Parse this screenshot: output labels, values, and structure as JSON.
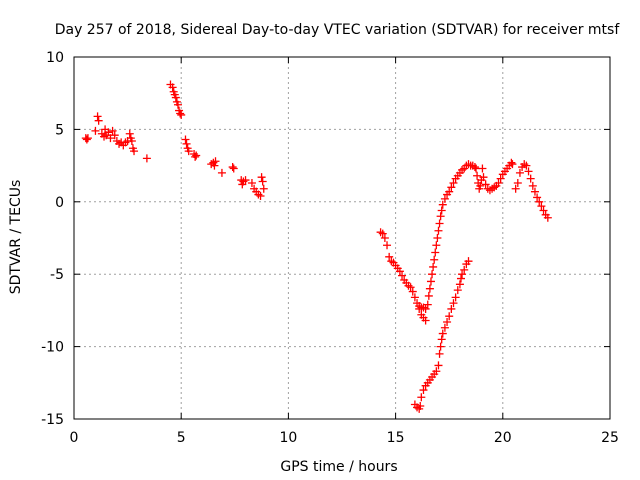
{
  "chart_data": {
    "type": "scatter",
    "title": "Day 257 of 2018, Sidereal Day-to-day VTEC variation (SDTVAR) for receiver mtsf",
    "xlabel": "GPS time / hours",
    "ylabel": "SDTVAR / TECUs",
    "xlim": [
      0,
      25
    ],
    "ylim": [
      -15,
      10
    ],
    "xticks": [
      0,
      5,
      10,
      15,
      20,
      25
    ],
    "yticks": [
      -15,
      -10,
      -5,
      0,
      5,
      10
    ],
    "grid": true,
    "marker": "+",
    "color": "#ff0000",
    "series": [
      {
        "name": "SDTVAR",
        "points": [
          [
            0.55,
            4.4
          ],
          [
            0.6,
            4.3
          ],
          [
            0.65,
            4.4
          ],
          [
            1.0,
            4.9
          ],
          [
            1.1,
            5.9
          ],
          [
            1.15,
            5.6
          ],
          [
            1.3,
            4.7
          ],
          [
            1.4,
            4.5
          ],
          [
            1.45,
            5.0
          ],
          [
            1.5,
            4.6
          ],
          [
            1.6,
            4.8
          ],
          [
            1.7,
            4.4
          ],
          [
            1.8,
            4.9
          ],
          [
            1.9,
            4.6
          ],
          [
            2.0,
            4.2
          ],
          [
            2.1,
            4.0
          ],
          [
            2.2,
            4.1
          ],
          [
            2.3,
            3.9
          ],
          [
            2.4,
            4.1
          ],
          [
            2.5,
            4.2
          ],
          [
            2.6,
            4.7
          ],
          [
            2.65,
            4.4
          ],
          [
            2.7,
            4.2
          ],
          [
            2.75,
            3.7
          ],
          [
            2.8,
            3.5
          ],
          [
            3.4,
            3.0
          ],
          [
            4.5,
            8.1
          ],
          [
            4.6,
            7.9
          ],
          [
            4.65,
            7.6
          ],
          [
            4.7,
            7.4
          ],
          [
            4.75,
            7.2
          ],
          [
            4.8,
            6.9
          ],
          [
            4.85,
            6.7
          ],
          [
            4.9,
            6.3
          ],
          [
            4.95,
            6.1
          ],
          [
            5.0,
            6.0
          ],
          [
            5.2,
            4.3
          ],
          [
            5.25,
            4.0
          ],
          [
            5.3,
            3.7
          ],
          [
            5.35,
            3.5
          ],
          [
            5.6,
            3.3
          ],
          [
            5.65,
            3.1
          ],
          [
            5.7,
            3.2
          ],
          [
            6.4,
            2.6
          ],
          [
            6.5,
            2.7
          ],
          [
            6.55,
            2.5
          ],
          [
            6.6,
            2.8
          ],
          [
            6.9,
            2.0
          ],
          [
            7.4,
            2.4
          ],
          [
            7.45,
            2.3
          ],
          [
            7.8,
            1.5
          ],
          [
            7.85,
            1.2
          ],
          [
            7.9,
            1.4
          ],
          [
            8.0,
            1.5
          ],
          [
            8.3,
            1.3
          ],
          [
            8.4,
            0.9
          ],
          [
            8.5,
            0.7
          ],
          [
            8.6,
            0.5
          ],
          [
            8.7,
            0.4
          ],
          [
            8.75,
            1.7
          ],
          [
            8.8,
            1.4
          ],
          [
            8.85,
            0.9
          ],
          [
            14.3,
            -2.1
          ],
          [
            14.4,
            -2.2
          ],
          [
            14.5,
            -2.5
          ],
          [
            14.6,
            -3.0
          ],
          [
            14.7,
            -3.8
          ],
          [
            14.8,
            -4.1
          ],
          [
            14.9,
            -4.2
          ],
          [
            15.0,
            -4.4
          ],
          [
            15.1,
            -4.6
          ],
          [
            15.2,
            -4.8
          ],
          [
            15.3,
            -5.1
          ],
          [
            15.4,
            -5.4
          ],
          [
            15.5,
            -5.6
          ],
          [
            15.6,
            -5.8
          ],
          [
            15.7,
            -5.9
          ],
          [
            15.8,
            -6.2
          ],
          [
            15.9,
            -6.6
          ],
          [
            16.0,
            -7.0
          ],
          [
            16.1,
            -7.4
          ],
          [
            16.2,
            -7.8
          ],
          [
            16.3,
            -8.0
          ],
          [
            16.4,
            -8.2
          ],
          [
            16.1,
            -7.2
          ],
          [
            16.2,
            -7.3
          ],
          [
            16.3,
            -7.3
          ],
          [
            16.4,
            -7.4
          ],
          [
            16.5,
            -7.1
          ],
          [
            16.55,
            -6.5
          ],
          [
            16.6,
            -6.0
          ],
          [
            16.65,
            -5.5
          ],
          [
            16.7,
            -5.0
          ],
          [
            16.75,
            -4.5
          ],
          [
            16.8,
            -4.0
          ],
          [
            16.85,
            -3.5
          ],
          [
            16.9,
            -3.0
          ],
          [
            16.95,
            -2.5
          ],
          [
            17.0,
            -2.0
          ],
          [
            17.05,
            -1.5
          ],
          [
            17.1,
            -1.0
          ],
          [
            17.15,
            -0.6
          ],
          [
            17.2,
            -0.2
          ],
          [
            17.3,
            0.2
          ],
          [
            17.4,
            0.5
          ],
          [
            17.5,
            0.7
          ],
          [
            17.6,
            1.0
          ],
          [
            17.7,
            1.3
          ],
          [
            17.8,
            1.6
          ],
          [
            17.9,
            1.8
          ],
          [
            18.0,
            2.0
          ],
          [
            18.1,
            2.2
          ],
          [
            18.2,
            2.3
          ],
          [
            18.3,
            2.5
          ],
          [
            18.4,
            2.6
          ],
          [
            18.5,
            2.5
          ],
          [
            18.6,
            2.5
          ],
          [
            18.7,
            2.4
          ],
          [
            18.75,
            2.3
          ],
          [
            18.8,
            1.8
          ],
          [
            18.85,
            1.3
          ],
          [
            18.9,
            0.9
          ],
          [
            18.95,
            1.1
          ],
          [
            19.0,
            1.5
          ],
          [
            19.05,
            2.3
          ],
          [
            19.1,
            1.7
          ],
          [
            19.2,
            1.2
          ],
          [
            19.3,
            0.9
          ],
          [
            19.4,
            0.8
          ],
          [
            19.5,
            0.9
          ],
          [
            19.6,
            1.0
          ],
          [
            19.7,
            1.1
          ],
          [
            19.8,
            1.3
          ],
          [
            19.9,
            1.6
          ],
          [
            20.0,
            1.9
          ],
          [
            20.1,
            2.1
          ],
          [
            20.2,
            2.3
          ],
          [
            20.3,
            2.5
          ],
          [
            20.4,
            2.7
          ],
          [
            20.45,
            2.6
          ],
          [
            20.6,
            0.9
          ],
          [
            20.7,
            1.3
          ],
          [
            20.8,
            2.0
          ],
          [
            20.9,
            2.4
          ],
          [
            21.0,
            2.6
          ],
          [
            21.1,
            2.5
          ],
          [
            21.2,
            2.1
          ],
          [
            21.3,
            1.6
          ],
          [
            21.4,
            1.1
          ],
          [
            21.5,
            0.7
          ],
          [
            21.6,
            0.3
          ],
          [
            21.7,
            0.0
          ],
          [
            21.8,
            -0.3
          ],
          [
            21.9,
            -0.6
          ],
          [
            22.0,
            -0.9
          ],
          [
            22.1,
            -1.1
          ],
          [
            15.9,
            -14.0
          ],
          [
            16.0,
            -14.2
          ],
          [
            16.1,
            -14.3
          ],
          [
            16.15,
            -14.1
          ],
          [
            16.2,
            -13.5
          ],
          [
            16.3,
            -13.0
          ],
          [
            16.4,
            -12.7
          ],
          [
            16.5,
            -12.5
          ],
          [
            16.6,
            -12.3
          ],
          [
            16.7,
            -12.1
          ],
          [
            16.8,
            -11.9
          ],
          [
            16.9,
            -11.7
          ],
          [
            17.0,
            -11.3
          ],
          [
            17.05,
            -10.5
          ],
          [
            17.1,
            -10.0
          ],
          [
            17.15,
            -9.5
          ],
          [
            17.2,
            -9.1
          ],
          [
            17.3,
            -8.7
          ],
          [
            17.4,
            -8.3
          ],
          [
            17.5,
            -7.9
          ],
          [
            17.6,
            -7.4
          ],
          [
            17.7,
            -7.0
          ],
          [
            17.8,
            -6.6
          ],
          [
            17.9,
            -6.1
          ],
          [
            18.0,
            -5.7
          ],
          [
            18.05,
            -5.3
          ],
          [
            18.1,
            -5.0
          ],
          [
            18.2,
            -4.7
          ],
          [
            18.3,
            -4.3
          ],
          [
            18.4,
            -4.1
          ]
        ]
      }
    ]
  }
}
